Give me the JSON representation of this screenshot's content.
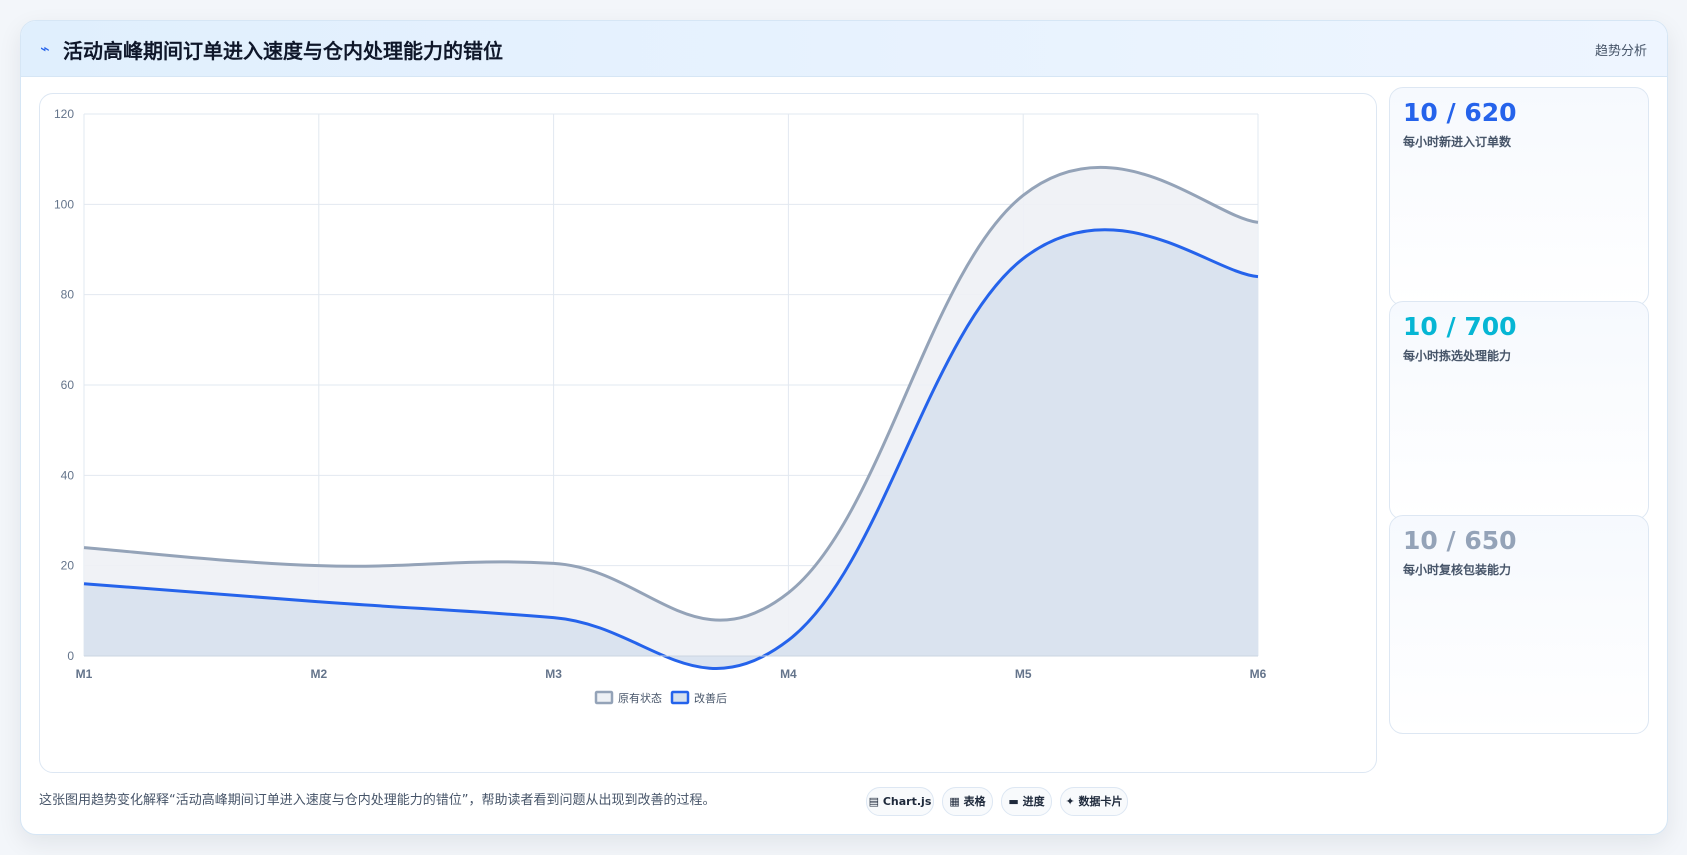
{
  "header": {
    "icon": "trend-line-icon",
    "title": "活动高峰期间订单进入速度与仓内处理能力的错位",
    "tag": "趋势分析"
  },
  "chart_data": {
    "type": "area",
    "title": "",
    "xlabel": "",
    "ylabel": "",
    "categories": [
      "M1",
      "M2",
      "M3",
      "M4",
      "M5",
      "M6"
    ],
    "ylim": [
      0,
      120
    ],
    "yticks": [
      0,
      20,
      40,
      60,
      80,
      100,
      120
    ],
    "grid": true,
    "legend_position": "bottom",
    "series": [
      {
        "name": "原有状态",
        "values": [
          24,
          20,
          20.5,
          14,
          102,
          96
        ],
        "color": "#94a3b8",
        "fill": "#eef1f5"
      },
      {
        "name": "改善后",
        "values": [
          16,
          12,
          8.5,
          3.5,
          88,
          84
        ],
        "color": "#2563eb",
        "fill": "#d7e1ee"
      }
    ]
  },
  "kpis": [
    {
      "value": "10 / 620",
      "label": "每小时新进入订单数",
      "color": "#2563eb"
    },
    {
      "value": "10 / 700",
      "label": "每小时拣选处理能力",
      "color": "#06b6d4"
    },
    {
      "value": "10 / 650",
      "label": "每小时复核包装能力",
      "color": "#94a3b8"
    }
  ],
  "footer": {
    "text": "这张图用趋势变化解释“活动高峰期间订单进入速度与仓内处理能力的错位”，帮助读者看到问题从出现到改善的过程。",
    "pills": [
      {
        "icon": "chart-icon",
        "glyph": "▤",
        "label": "Chart.js"
      },
      {
        "icon": "table-icon",
        "glyph": "▦",
        "label": "表格"
      },
      {
        "icon": "progress-icon",
        "glyph": "▬",
        "label": "进度"
      },
      {
        "icon": "sparkle-icon",
        "glyph": "✦",
        "label": "数据卡片"
      }
    ]
  }
}
